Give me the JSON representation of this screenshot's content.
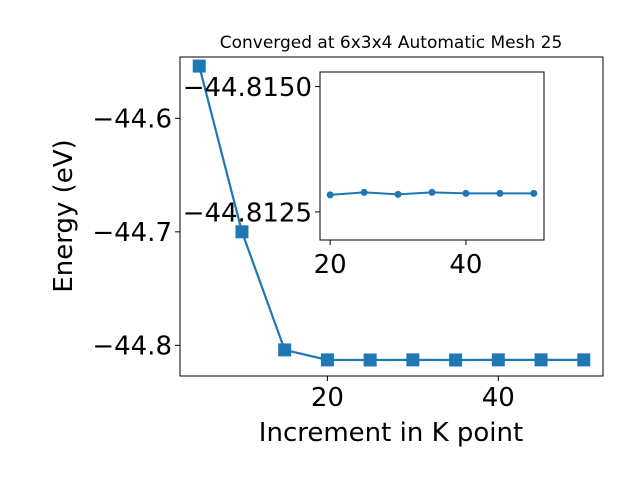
{
  "chart_data": [
    {
      "type": "line",
      "title": "Converged at 6x3x4 Automatic Mesh 25",
      "xlabel": "Increment in K point",
      "ylabel": "Energy (eV)",
      "x": [
        5,
        10,
        15,
        20,
        25,
        30,
        35,
        40,
        45,
        50
      ],
      "series": [
        {
          "values": [
            -44.554,
            -44.7,
            -44.804,
            -44.8128,
            -44.8129,
            -44.8128,
            -44.8129,
            -44.8128,
            -44.8128,
            -44.8128
          ]
        }
      ],
      "xlim": [
        2.75,
        52.25
      ],
      "ylim": [
        -44.827,
        -44.546
      ],
      "xticks": [
        20,
        40
      ],
      "xtick_labels": [
        "20",
        "40"
      ],
      "yticks": [
        -44.6,
        -44.7,
        -44.8
      ],
      "ytick_labels": [
        "−44.6",
        "−44.7",
        "−44.8"
      ],
      "marker": "square",
      "color": "#1f77b4",
      "grid": false
    },
    {
      "type": "line",
      "title": "",
      "xlabel": "",
      "ylabel": "",
      "x": [
        20,
        25,
        30,
        35,
        40,
        45,
        50
      ],
      "series": [
        {
          "values": [
            -44.81284,
            -44.81289,
            -44.81285,
            -44.81289,
            -44.81287,
            -44.81287,
            -44.81287
          ]
        }
      ],
      "xlim": [
        18.5,
        51.5
      ],
      "ylim": [
        -44.81194,
        -44.81529
      ],
      "xticks": [
        20,
        40
      ],
      "xtick_labels": [
        "20",
        "40"
      ],
      "yticks": [
        -44.815,
        -44.8125
      ],
      "ytick_labels": [
        "−44.8150",
        "−44.8125"
      ],
      "marker": "circle",
      "color": "#1f77b4",
      "grid": false
    }
  ]
}
